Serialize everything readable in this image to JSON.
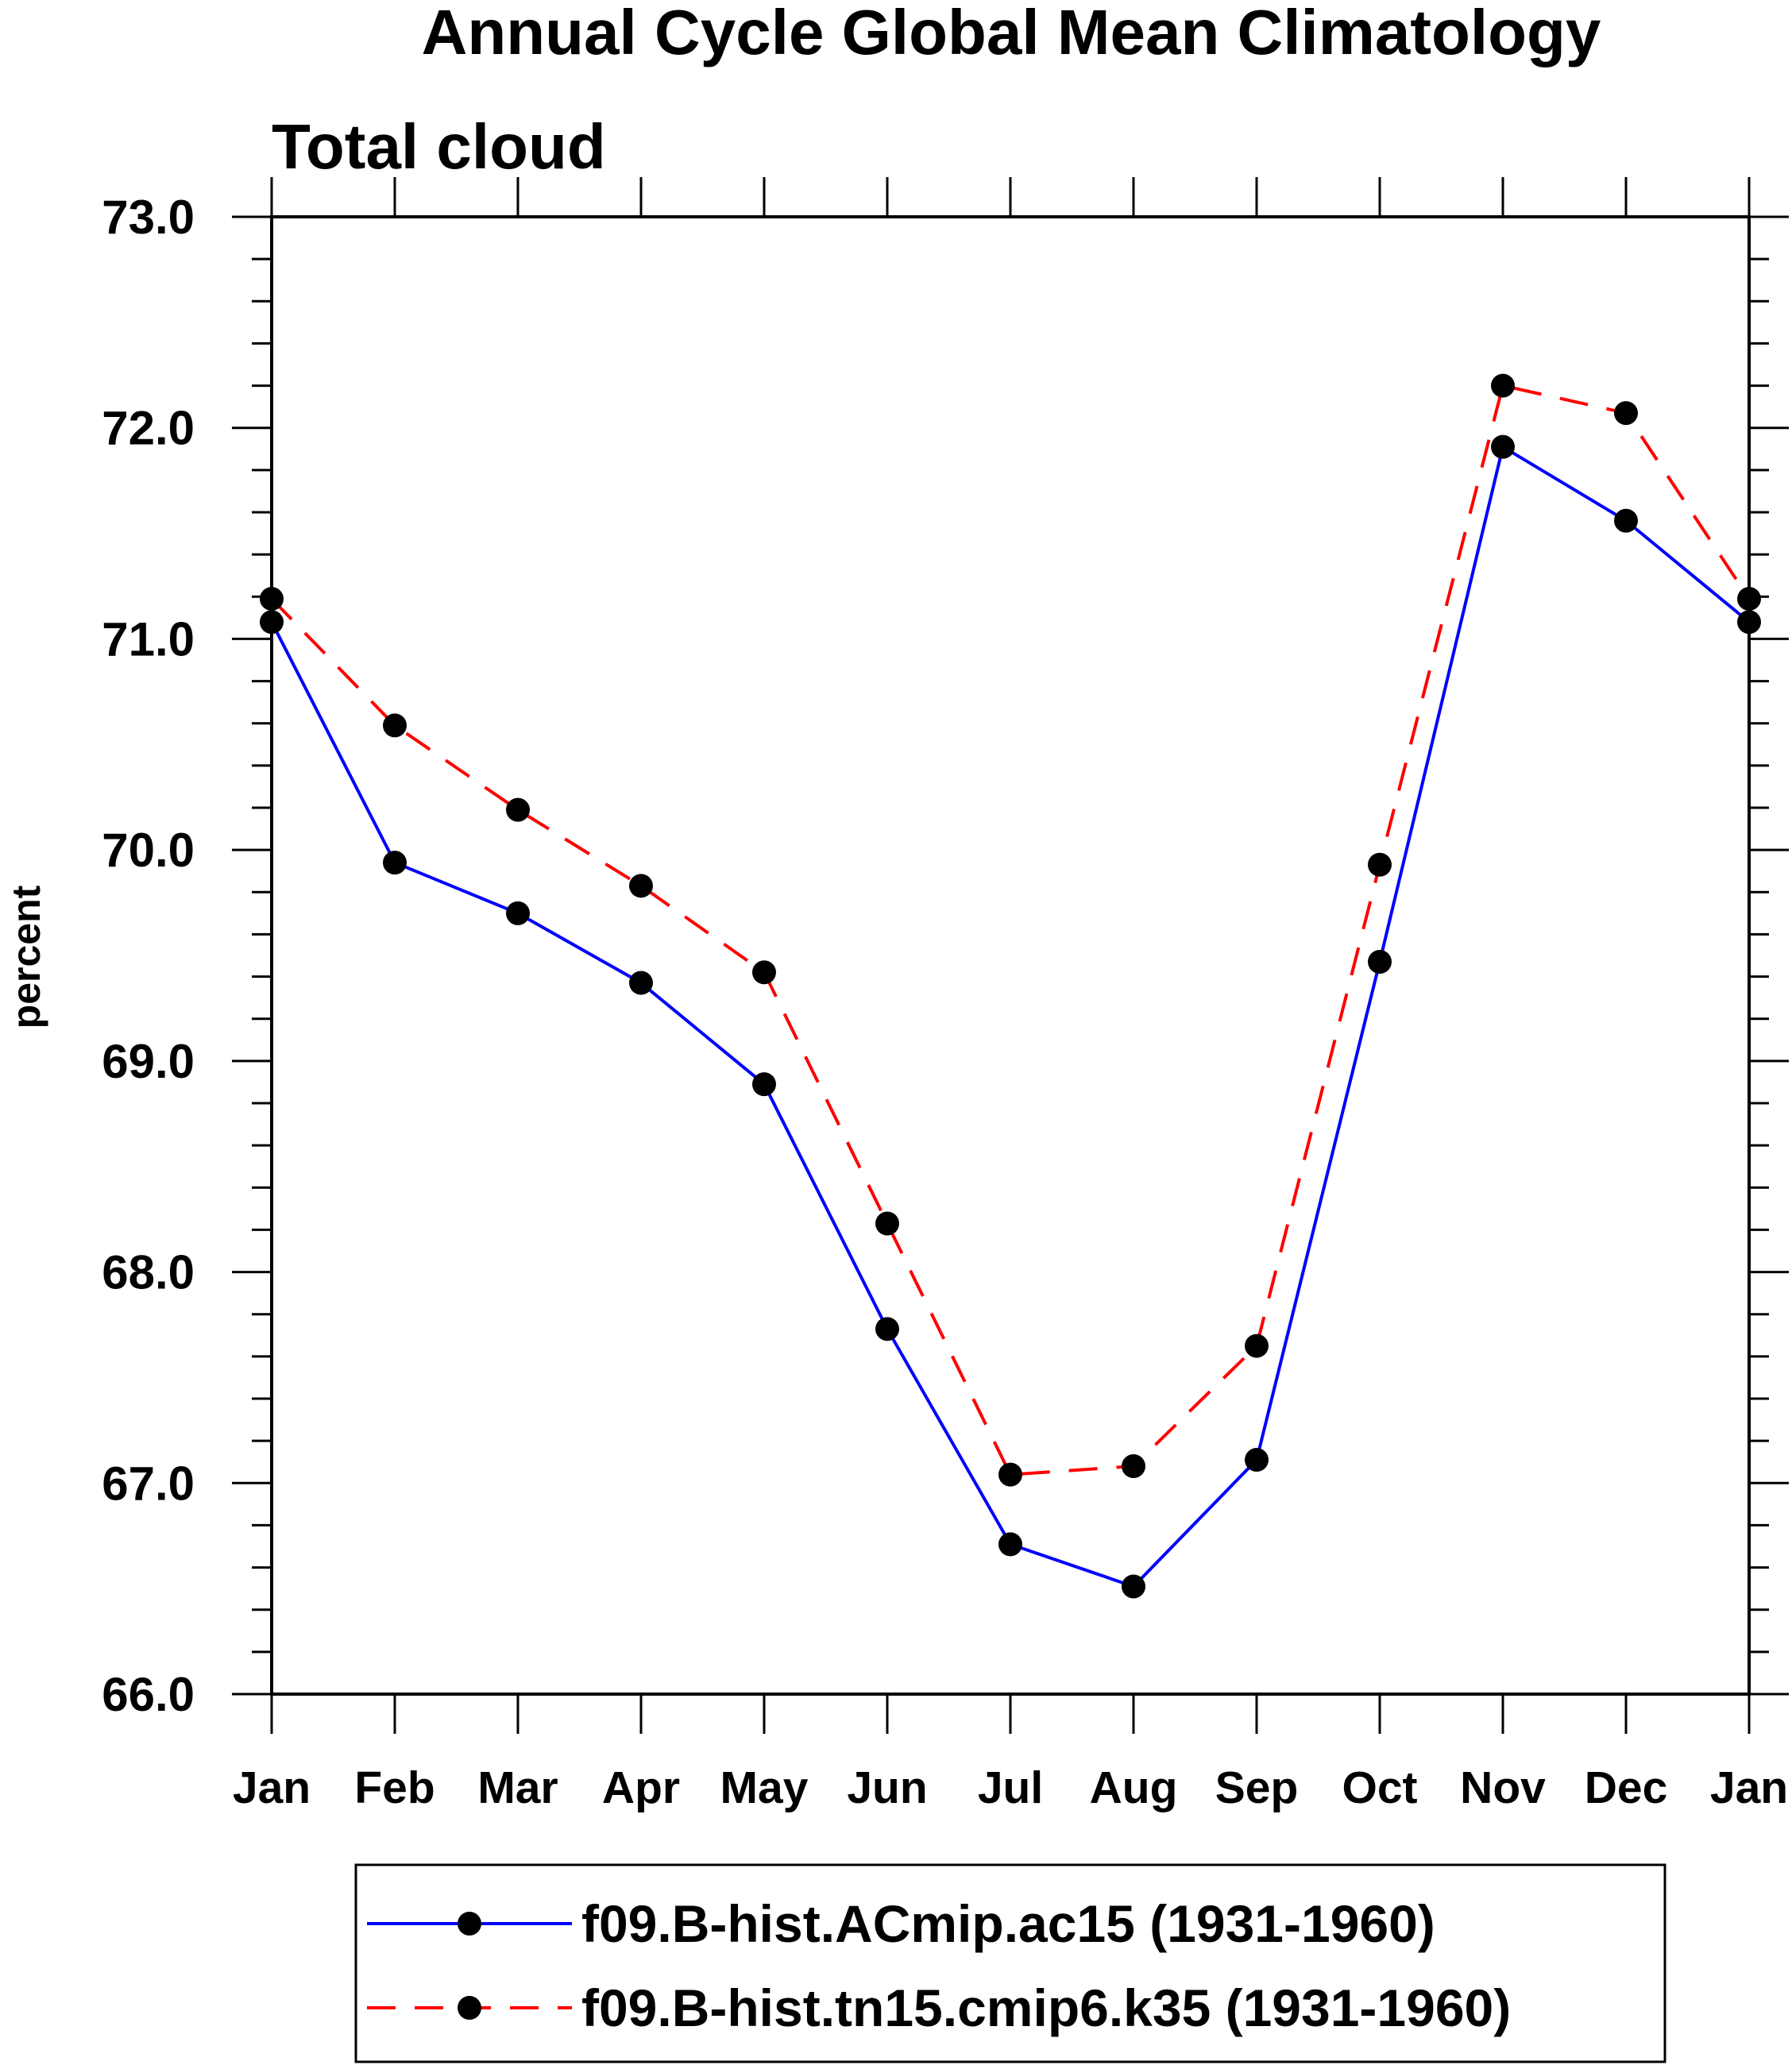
{
  "chart_data": {
    "type": "line",
    "title": "Annual Cycle Global Mean Climatology",
    "subtitle": "Total cloud",
    "ylabel": "percent",
    "xlabel": "",
    "categories": [
      "Jan",
      "Feb",
      "Mar",
      "Apr",
      "May",
      "Jun",
      "Jul",
      "Aug",
      "Sep",
      "Oct",
      "Nov",
      "Dec",
      "Jan"
    ],
    "ylim": [
      66.0,
      73.0
    ],
    "yticks": [
      66.0,
      67.0,
      68.0,
      69.0,
      70.0,
      71.0,
      72.0,
      73.0
    ],
    "ytick_labels": [
      "66.0",
      "67.0",
      "68.0",
      "69.0",
      "70.0",
      "71.0",
      "72.0",
      "73.0"
    ],
    "yminor_step": 0.2,
    "grid": false,
    "legend_position": "bottom",
    "series": [
      {
        "name": "f09.B-hist.ACmip.ac15 (1931-1960)",
        "color": "#0000ff",
        "line_style": "solid",
        "marker": "filled-circle",
        "values": [
          71.08,
          69.94,
          69.7,
          69.37,
          68.89,
          67.73,
          66.71,
          66.51,
          67.11,
          69.47,
          71.91,
          71.56,
          71.08
        ]
      },
      {
        "name": "f09.B-hist.tn15.cmip6.k35 (1931-1960)",
        "color": "#ff0000",
        "line_style": "dashed",
        "marker": "filled-circle",
        "values": [
          71.19,
          70.59,
          70.19,
          69.83,
          69.42,
          68.23,
          67.04,
          67.08,
          67.65,
          69.93,
          72.2,
          72.07,
          71.19
        ]
      }
    ]
  }
}
